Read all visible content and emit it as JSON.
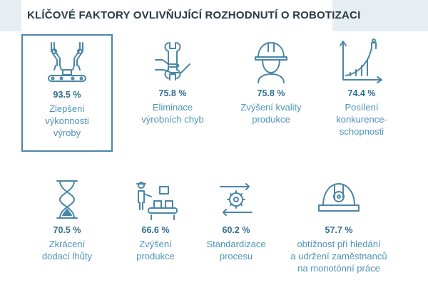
{
  "title": "KLÍČOVÉ FAKTORY OVLIVŇUJÍCÍ ROZHODNUTÍ O ROBOTIZACI",
  "colors": {
    "accent": "#4a86a8",
    "percent": "#2f6d92",
    "label": "#4d93b8",
    "icon": "#4a86a8"
  },
  "chart_data": {
    "type": "table",
    "title": "KLÍČOVÉ FAKTORY OVLIVŇUJÍCÍ ROZHODNUTÍ O ROBOTIZACI",
    "categories": [
      "Zlepšení výkonnosti výroby",
      "Eliminace výrobních chyb",
      "Zvýšení kvality produkce",
      "Posílení konkurence-schopnosti",
      "Zkrácení dodací lhůty",
      "Zvýšení produkce",
      "Standardizace procesu",
      "obtížnost při hledání a udržení zaměstnanců na monotónní práce"
    ],
    "values": [
      93.5,
      75.8,
      75.8,
      74.4,
      70.5,
      66.6,
      60.2,
      57.7
    ],
    "unit": "%"
  },
  "factors": [
    {
      "value": "93.5 %",
      "label_lines": [
        "Zlepšení",
        "výkonnosti",
        "výroby"
      ],
      "icon": "robot-arms-conveyor-icon",
      "highlighted": true
    },
    {
      "value": "75.8 %",
      "label_lines": [
        "Eliminace",
        "výrobních chyb"
      ],
      "icon": "wrench-hand-icon",
      "highlighted": false
    },
    {
      "value": "75.8 %",
      "label_lines": [
        "Zvýšení kvality",
        "produkce"
      ],
      "icon": "hardhat-worker-icon",
      "highlighted": false
    },
    {
      "value": "74.4 %",
      "label_lines": [
        "Posílení",
        "konkurence-",
        "schopnosti"
      ],
      "icon": "growth-chart-climber-icon",
      "highlighted": false
    },
    {
      "value": "70.5 %",
      "label_lines": [
        "Zkrácení",
        "dodací lhůty"
      ],
      "icon": "hourglass-icon",
      "highlighted": false
    },
    {
      "value": "66.6 %",
      "label_lines": [
        "Zvýšení",
        "produkce"
      ],
      "icon": "worker-conveyor-boxes-icon",
      "highlighted": false
    },
    {
      "value": "60.2 %",
      "label_lines": [
        "Standardizace",
        "procesu"
      ],
      "icon": "gear-cycle-arrows-icon",
      "highlighted": false
    },
    {
      "value": "57.7 %",
      "label_lines": [
        "obtížnost při hledání",
        "a udržení zaměstnanců",
        "na monotónní práce"
      ],
      "icon": "hardhat-icon",
      "highlighted": false
    }
  ]
}
